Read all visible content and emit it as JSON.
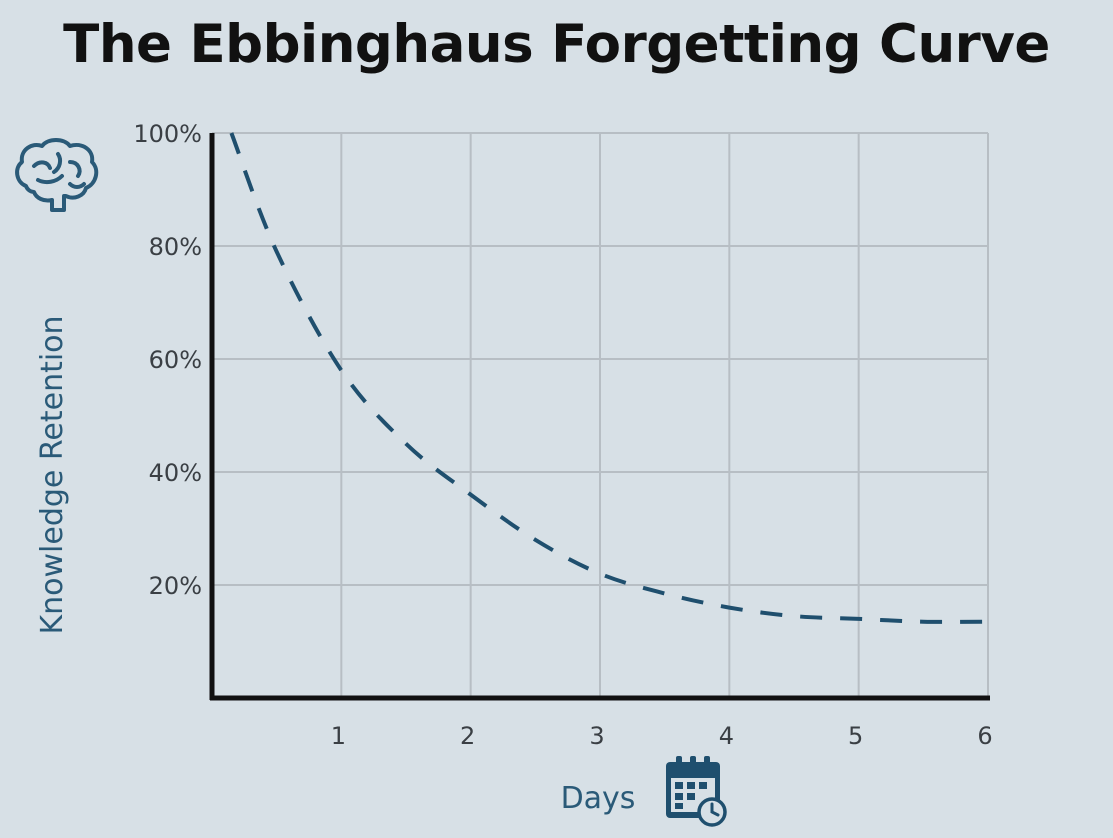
{
  "title": "The Ebbinghaus Forgetting Curve",
  "colors": {
    "background": "#d7e0e6",
    "curve": "#1f4f6e",
    "grid": "#b7bec4",
    "axis": "#111111",
    "label_accent": "#2a5a78"
  },
  "icons": {
    "y_axis": "brain-icon",
    "x_axis": "calendar-clock-icon"
  },
  "chart_data": {
    "type": "line",
    "title": "The Ebbinghaus Forgetting Curve",
    "xlabel": "Days",
    "ylabel": "Knowledge Retention",
    "xlim": [
      0,
      6
    ],
    "ylim": [
      0,
      100
    ],
    "x_ticks": [
      1,
      2,
      3,
      4,
      5,
      6
    ],
    "x_tick_labels": [
      "1",
      "2",
      "3",
      "4",
      "5",
      "6"
    ],
    "y_ticks": [
      20,
      40,
      60,
      80,
      100
    ],
    "y_tick_labels": [
      "20%",
      "40%",
      "60%",
      "80%",
      "100%"
    ],
    "grid": true,
    "line_style": "dashed",
    "series": [
      {
        "x": [
          0.15,
          0.5,
          1,
          1.5,
          2,
          2.5,
          3,
          3.5,
          4,
          4.5,
          5,
          5.5,
          6
        ],
        "y": [
          100,
          79,
          58,
          45,
          36,
          28,
          22,
          18.5,
          16,
          14.5,
          14,
          13.5,
          13.5
        ]
      }
    ]
  }
}
